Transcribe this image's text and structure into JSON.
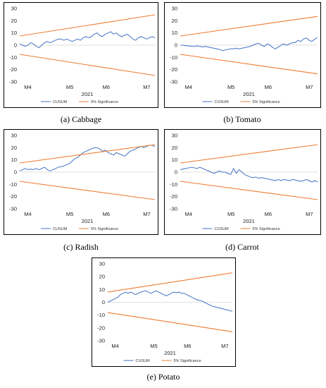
{
  "colors": {
    "cusum": "#4472C4",
    "significance": "#ED7D31",
    "zero_line": "#d9d9d9"
  },
  "chart_data": [
    {
      "type": "line",
      "caption": "(a) Cabbage",
      "y_ticks": [
        "30",
        "20",
        "10",
        "0",
        "-10",
        "-20",
        "-30"
      ],
      "ylim": [
        -30,
        30
      ],
      "x_ticks": [
        "M4",
        "M5",
        "M6",
        "M7"
      ],
      "xlabel": "2021",
      "legend": [
        "CUSUM",
        "5% Significance"
      ],
      "series": [
        {
          "name": "CUSUM",
          "values": [
            1,
            0,
            -1,
            0,
            2,
            1,
            -1,
            -2,
            0,
            2,
            3,
            2,
            3,
            4,
            5,
            5,
            4,
            5,
            4,
            3,
            4,
            5,
            4,
            6,
            7,
            6,
            7,
            9,
            10,
            8,
            7,
            9,
            10,
            11,
            9,
            10,
            8,
            7,
            8,
            9,
            7,
            5,
            4,
            6,
            7,
            6,
            5,
            6,
            7,
            6
          ]
        },
        {
          "name": "5% Significance",
          "values": [
            7.5,
            24.8
          ]
        },
        {
          "name": "5% Significance",
          "values": [
            -7.5,
            -24.8
          ]
        }
      ]
    },
    {
      "type": "line",
      "caption": "(b) Tomato",
      "y_ticks": [
        "30",
        "20",
        "10",
        "0",
        "-10",
        "-20",
        "-30"
      ],
      "ylim": [
        -30,
        30
      ],
      "x_ticks": [
        "M4",
        "M5",
        "M6",
        "M7"
      ],
      "xlabel": "2021",
      "legend": [
        "CUSUM",
        "5% Significance"
      ],
      "series": [
        {
          "name": "CUSUM",
          "values": [
            0,
            0,
            -0.5,
            -0.5,
            -1,
            -1,
            -0.5,
            -1,
            -1.5,
            -1,
            -1.5,
            -2,
            -2.5,
            -3,
            -3.5,
            -4.5,
            -4,
            -3.5,
            -3,
            -3,
            -2.5,
            -3,
            -2.5,
            -2,
            -1.5,
            -1,
            0,
            1,
            1.5,
            0,
            -1,
            1,
            0,
            -2,
            -3,
            -1.5,
            0,
            1,
            0,
            1,
            2,
            2,
            4,
            3,
            5,
            6,
            4,
            3,
            5,
            6
          ]
        },
        {
          "name": "5% Significance",
          "values": [
            7.5,
            23.5
          ]
        },
        {
          "name": "5% Significance",
          "values": [
            -7.5,
            -23.5
          ]
        }
      ]
    },
    {
      "type": "line",
      "caption": "(c) Radish",
      "y_ticks": [
        "30",
        "20",
        "10",
        "0",
        "-10",
        "-20",
        "-30"
      ],
      "ylim": [
        -30,
        30
      ],
      "x_ticks": [
        "M4",
        "M5",
        "M6",
        "M7"
      ],
      "xlabel": "2021",
      "legend": [
        "CUSUM",
        "5% Significance"
      ],
      "series": [
        {
          "name": "CUSUM",
          "values": [
            1,
            2,
            3,
            2,
            2.5,
            2,
            3,
            2,
            3,
            4,
            2,
            1,
            2,
            3,
            4,
            4.5,
            5,
            6,
            7,
            9,
            11,
            12,
            14,
            16,
            17,
            18,
            19,
            20,
            20,
            19,
            17,
            18,
            16,
            15,
            14,
            16,
            15,
            14,
            13,
            15,
            17,
            18,
            19,
            20,
            21,
            20,
            21,
            22,
            22,
            21
          ]
        },
        {
          "name": "5% Significance",
          "values": [
            7.5,
            22.5
          ]
        },
        {
          "name": "5% Significance",
          "values": [
            -7.5,
            -22.5
          ]
        }
      ]
    },
    {
      "type": "line",
      "caption": "(d) Carrot",
      "y_ticks": [
        "30",
        "20",
        "10",
        "0",
        "-10",
        "-20",
        "-30"
      ],
      "ylim": [
        -30,
        30
      ],
      "x_ticks": [
        "M4",
        "M5",
        "M6",
        "M7"
      ],
      "xlabel": "2021",
      "legend": [
        "CUSUM",
        "5% Significance"
      ],
      "series": [
        {
          "name": "CUSUM",
          "values": [
            2,
            2.5,
            3,
            3.5,
            4,
            3.5,
            3,
            4,
            3,
            2,
            1,
            0,
            -1,
            0,
            1,
            0,
            0,
            -1,
            -2,
            3,
            -1,
            2,
            0,
            -2,
            -3,
            -4,
            -4.5,
            -4,
            -5,
            -4.5,
            -5,
            -5.5,
            -6,
            -6.5,
            -7,
            -6,
            -7,
            -6,
            -6.5,
            -7,
            -6,
            -6.5,
            -7,
            -7.5,
            -7,
            -6,
            -7,
            -8,
            -7,
            -8
          ]
        },
        {
          "name": "5% Significance",
          "values": [
            7.5,
            22.5
          ]
        },
        {
          "name": "5% Significance",
          "values": [
            -7.5,
            -22.5
          ]
        }
      ]
    },
    {
      "type": "line",
      "caption": "(e) Potato",
      "y_ticks": [
        "30",
        "20",
        "10",
        "0",
        "-10",
        "-20",
        "-30"
      ],
      "ylim": [
        -30,
        30
      ],
      "x_ticks": [
        "M4",
        "M5",
        "M6",
        "M7"
      ],
      "xlabel": "2021",
      "legend": [
        "CUSUM",
        "5% Significance"
      ],
      "series": [
        {
          "name": "CUSUM",
          "values": [
            0,
            1,
            2,
            3,
            4,
            6,
            7,
            8,
            7,
            8,
            7,
            6,
            7,
            8,
            8.5,
            9,
            8,
            7,
            8,
            9,
            8,
            7,
            6,
            5,
            6,
            7,
            8,
            7.5,
            8,
            7,
            7,
            6,
            5,
            4,
            3,
            2,
            1.5,
            1,
            0,
            -1,
            -2,
            -3,
            -3.5,
            -4,
            -4.5,
            -5,
            -5.5,
            -6,
            -6.5,
            -7
          ]
        },
        {
          "name": "5% Significance",
          "values": [
            8,
            23
          ]
        },
        {
          "name": "5% Significance",
          "values": [
            -8,
            -23
          ]
        }
      ]
    }
  ]
}
